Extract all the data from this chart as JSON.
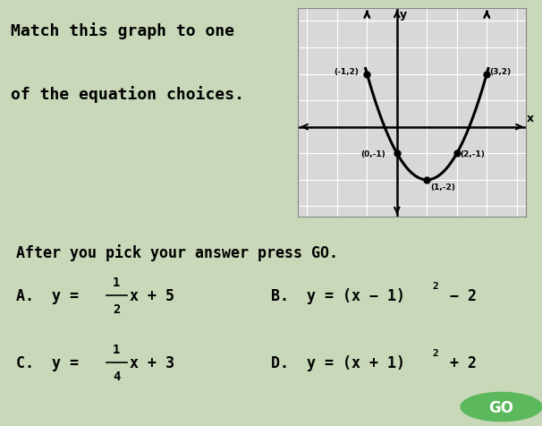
{
  "title_line1": "Match this graph to one",
  "title_line2": "of the equation choices.",
  "bg_color_top": "#c8d8b8",
  "bg_color_bottom": "#dce8f8",
  "graph_bg": "#d8d8d8",
  "graph_grid_color": "#ffffff",
  "points": [
    [
      -1,
      2
    ],
    [
      0,
      -1
    ],
    [
      1,
      -2
    ],
    [
      2,
      -1
    ],
    [
      3,
      2
    ]
  ],
  "point_labels": [
    "(-1,2)",
    "(0,-1)",
    "(1,-2)",
    "(2,-1)",
    "(3,2)"
  ],
  "curve_color": "#000000",
  "point_color": "#000000",
  "answer_text": "After you pick your answer press GO.",
  "go_button_color": "#5cb85c",
  "go_text": "GO",
  "separator_color": "#6688aa",
  "axis_range": [
    -3,
    4,
    -3,
    4
  ],
  "title_color": "#000000",
  "bottom_text_color": "#000000"
}
